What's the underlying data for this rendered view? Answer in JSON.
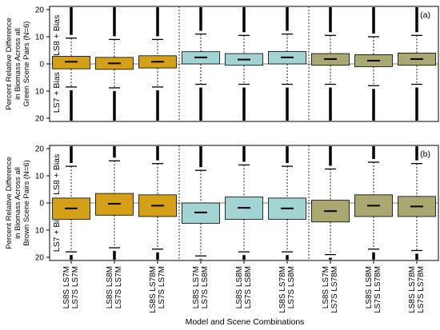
{
  "chart_data": [
    {
      "panel": "(a)",
      "type": "box",
      "ylabel": [
        "Percent Relative Difference",
        "in Biomass Across all",
        "Green Scene Pairs (N=6)"
      ],
      "upper_region_label": "LS8 + Bias",
      "lower_region_label": "LS7 + Bias",
      "yticks": [
        "20",
        "10",
        "0",
        "10",
        "20"
      ],
      "ylim": [
        -20,
        20
      ],
      "groups": [
        {
          "name": "LS7M",
          "color": "#d4a017"
        },
        {
          "name": "LS8M",
          "color": "#a3d4d4"
        },
        {
          "name": "LS78M",
          "color": "#a8a870"
        }
      ],
      "boxes": [
        {
          "category": "LS8S LS7M / LS7S LS7M",
          "q1": -1.8,
          "median": 0.8,
          "q3": 2.8,
          "whisker_low": -8.5,
          "whisker_high": 9.5
        },
        {
          "category": "LS8S LS8M / LS7S LS7M",
          "q1": -2.0,
          "median": 0.2,
          "q3": 2.4,
          "whisker_low": -8.8,
          "whisker_high": 9.0
        },
        {
          "category": "LS8S LS78M / LS7S LS7M",
          "q1": -1.5,
          "median": 0.8,
          "q3": 3.0,
          "whisker_low": -8.5,
          "whisker_high": 9.0
        },
        {
          "category": "LS8S LS7M / LS7S LS8M",
          "q1": 0.0,
          "median": 2.4,
          "q3": 4.5,
          "whisker_low": -7.5,
          "whisker_high": 11.0
        },
        {
          "category": "LS8S LS8M / LS7S LS8M",
          "q1": -0.5,
          "median": 1.6,
          "q3": 3.8,
          "whisker_low": -7.5,
          "whisker_high": 10.5
        },
        {
          "category": "LS8S LS78M / LS7S LS8M",
          "q1": 0.0,
          "median": 2.4,
          "q3": 4.6,
          "whisker_low": -7.5,
          "whisker_high": 11.0
        },
        {
          "category": "LS8S LS7M / LS7S LS78M",
          "q1": -0.5,
          "median": 1.8,
          "q3": 3.8,
          "whisker_low": -7.5,
          "whisker_high": 10.5
        },
        {
          "category": "LS8S LS8M / LS7S LS78M",
          "q1": -1.0,
          "median": 1.2,
          "q3": 3.4,
          "whisker_low": -8.0,
          "whisker_high": 10.0
        },
        {
          "category": "LS8S LS78M / LS7S LS78M",
          "q1": -0.5,
          "median": 1.8,
          "q3": 4.0,
          "whisker_low": -7.5,
          "whisker_high": 10.5
        }
      ]
    },
    {
      "panel": "(b)",
      "type": "box",
      "ylabel": [
        "Percent Relative Difference",
        "in Biomass Across all",
        "Brown Scene Pairs (N=6)"
      ],
      "upper_region_label": "LS8 + Bias",
      "lower_region_label": "LS7 + Bias",
      "yticks": [
        "20",
        "10",
        "0",
        "10",
        "20"
      ],
      "ylim": [
        -20,
        20
      ],
      "groups": [
        {
          "name": "LS7M",
          "color": "#d4a017"
        },
        {
          "name": "LS8M",
          "color": "#a3d4d4"
        },
        {
          "name": "LS78M",
          "color": "#a8a870"
        }
      ],
      "boxes": [
        {
          "category": "LS8S LS7M / LS7S LS7M",
          "q1": -6.0,
          "median": -2.0,
          "q3": 1.8,
          "whisker_low": -18.0,
          "whisker_high": 13.5
        },
        {
          "category": "LS8S LS8M / LS7S LS7M",
          "q1": -4.5,
          "median": -0.3,
          "q3": 3.5,
          "whisker_low": -16.5,
          "whisker_high": 15.5
        },
        {
          "category": "LS8S LS78M / LS7S LS7M",
          "q1": -5.0,
          "median": -1.0,
          "q3": 3.0,
          "whisker_low": -17.0,
          "whisker_high": 14.5
        },
        {
          "category": "LS8S LS7M / LS7S LS8M",
          "q1": -7.5,
          "median": -3.5,
          "q3": 0.0,
          "whisker_low": -19.5,
          "whisker_high": 12.0
        },
        {
          "category": "LS8S LS8M / LS7S LS8M",
          "q1": -6.0,
          "median": -1.8,
          "q3": 2.2,
          "whisker_low": -18.0,
          "whisker_high": 14.0
        },
        {
          "category": "LS8S LS78M / LS7S LS8M",
          "q1": -6.0,
          "median": -2.0,
          "q3": 1.8,
          "whisker_low": -18.0,
          "whisker_high": 13.5
        },
        {
          "category": "LS8S LS7M / LS7S LS78M",
          "q1": -7.0,
          "median": -3.0,
          "q3": 1.0,
          "whisker_low": -19.0,
          "whisker_high": 12.5
        },
        {
          "category": "LS8S LS8M / LS7S LS78M",
          "q1": -5.0,
          "median": -1.0,
          "q3": 3.0,
          "whisker_low": -17.0,
          "whisker_high": 15.0
        },
        {
          "category": "LS8S LS78M / LS7S LS78M",
          "q1": -5.0,
          "median": -1.3,
          "q3": 2.4,
          "whisker_low": -17.5,
          "whisker_high": 14.5
        }
      ]
    }
  ],
  "x_tick_labels": [
    {
      "line1": "LS8S LS7M",
      "line2": "LS7S LS7M"
    },
    {
      "line1": "LS8S LS8M",
      "line2": "LS7S LS7M"
    },
    {
      "line1": "LS8S LS78M",
      "line2": "LS7S LS7M"
    },
    {
      "line1": "LS8S LS7M",
      "line2": "LS7S LS8M"
    },
    {
      "line1": "LS8S LS8M",
      "line2": "LS7S LS8M"
    },
    {
      "line1": "LS8S LS78M",
      "line2": "LS7S LS8M"
    },
    {
      "line1": "LS8S LS7M",
      "line2": "LS7S LS78M"
    },
    {
      "line1": "LS8S LS8M",
      "line2": "LS7S LS78M"
    },
    {
      "line1": "LS8S LS78M",
      "line2": "LS7S LS78M"
    }
  ],
  "xlabel": "Model and Scene Combinations",
  "box_colors": [
    "#d4a017",
    "#d4a017",
    "#d4a017",
    "#a3d4d4",
    "#a3d4d4",
    "#a3d4d4",
    "#a8a870",
    "#a8a870",
    "#a8a870"
  ]
}
